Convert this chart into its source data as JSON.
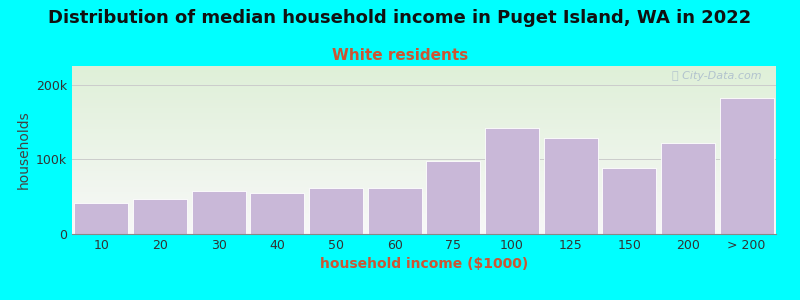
{
  "title": "Distribution of median household income in Puget Island, WA in 2022",
  "subtitle": "White residents",
  "xlabel": "household income ($1000)",
  "ylabel": "households",
  "background_color": "#00FFFF",
  "plot_bg_gradient_top": "#dff0d8",
  "plot_bg_gradient_bottom": "#f8f8f8",
  "bar_color": "#c9b8d8",
  "bar_edge_color": "#ffffff",
  "categories": [
    "10",
    "20",
    "30",
    "40",
    "50",
    "60",
    "75",
    "100",
    "125",
    "150",
    "200",
    "> 200"
  ],
  "values": [
    42000,
    47000,
    58000,
    55000,
    62000,
    62000,
    98000,
    142000,
    128000,
    88000,
    122000,
    182000
  ],
  "yticks": [
    0,
    100000,
    200000
  ],
  "ytick_labels": [
    "0",
    "100k",
    "200k"
  ],
  "ylim": [
    0,
    225000
  ],
  "title_fontsize": 13,
  "subtitle_fontsize": 11,
  "subtitle_color": "#cc5533",
  "axis_label_fontsize": 10,
  "tick_fontsize": 9,
  "watermark_text": "ⓘ City-Data.com",
  "watermark_color": "#aabbcc",
  "grid_color": "#cccccc",
  "ylabel_color": "#444444",
  "xlabel_color": "#cc5533",
  "title_color": "#111111"
}
